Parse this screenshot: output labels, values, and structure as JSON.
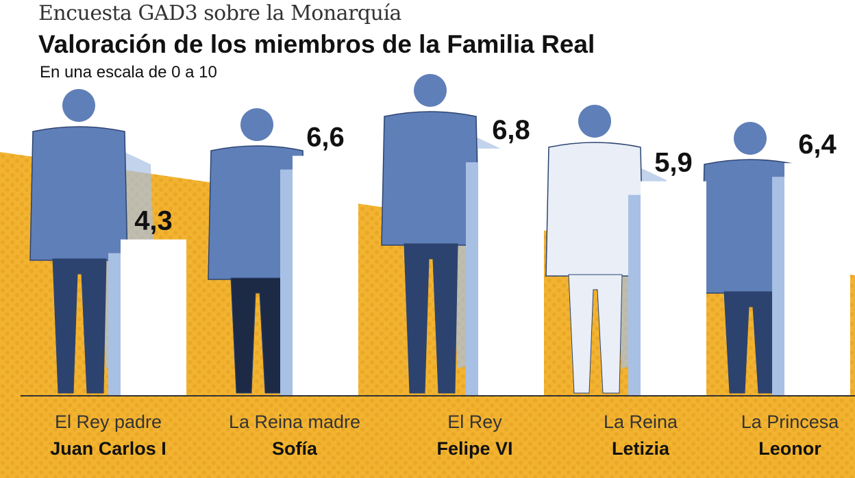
{
  "header": {
    "kicker": "Encuesta GAD3 sobre la Monarquía",
    "title": "Valoración de los miembros de la Familia Real",
    "subtitle": "En una escala de 0 a 10"
  },
  "colors": {
    "band": "#f2b430",
    "band_dots": "#e39a1e",
    "bar": "#ffffff",
    "shadow": "#a8c0e4",
    "figure": "#5f7fb8",
    "figure_dark": "#2c4370",
    "text": "#111111"
  },
  "chart_data": {
    "type": "bar",
    "title": "Valoración de los miembros de la Familia Real",
    "subtitle": "En una escala de 0 a 10",
    "categories": [
      {
        "role": "El Rey padre",
        "name": "Juan Carlos I"
      },
      {
        "role": "La Reina madre",
        "name": "Sofía"
      },
      {
        "role": "El Rey",
        "name": "Felipe VI"
      },
      {
        "role": "La Reina",
        "name": "Letizia"
      },
      {
        "role": "La Princesa",
        "name": "Leonor"
      }
    ],
    "values": [
      4.3,
      6.6,
      6.8,
      5.9,
      6.4
    ],
    "value_labels": [
      "4,3",
      "6,6",
      "6,8",
      "5,9",
      "6,4"
    ],
    "ylim": [
      0,
      10
    ],
    "grid": false,
    "legend": "none"
  }
}
